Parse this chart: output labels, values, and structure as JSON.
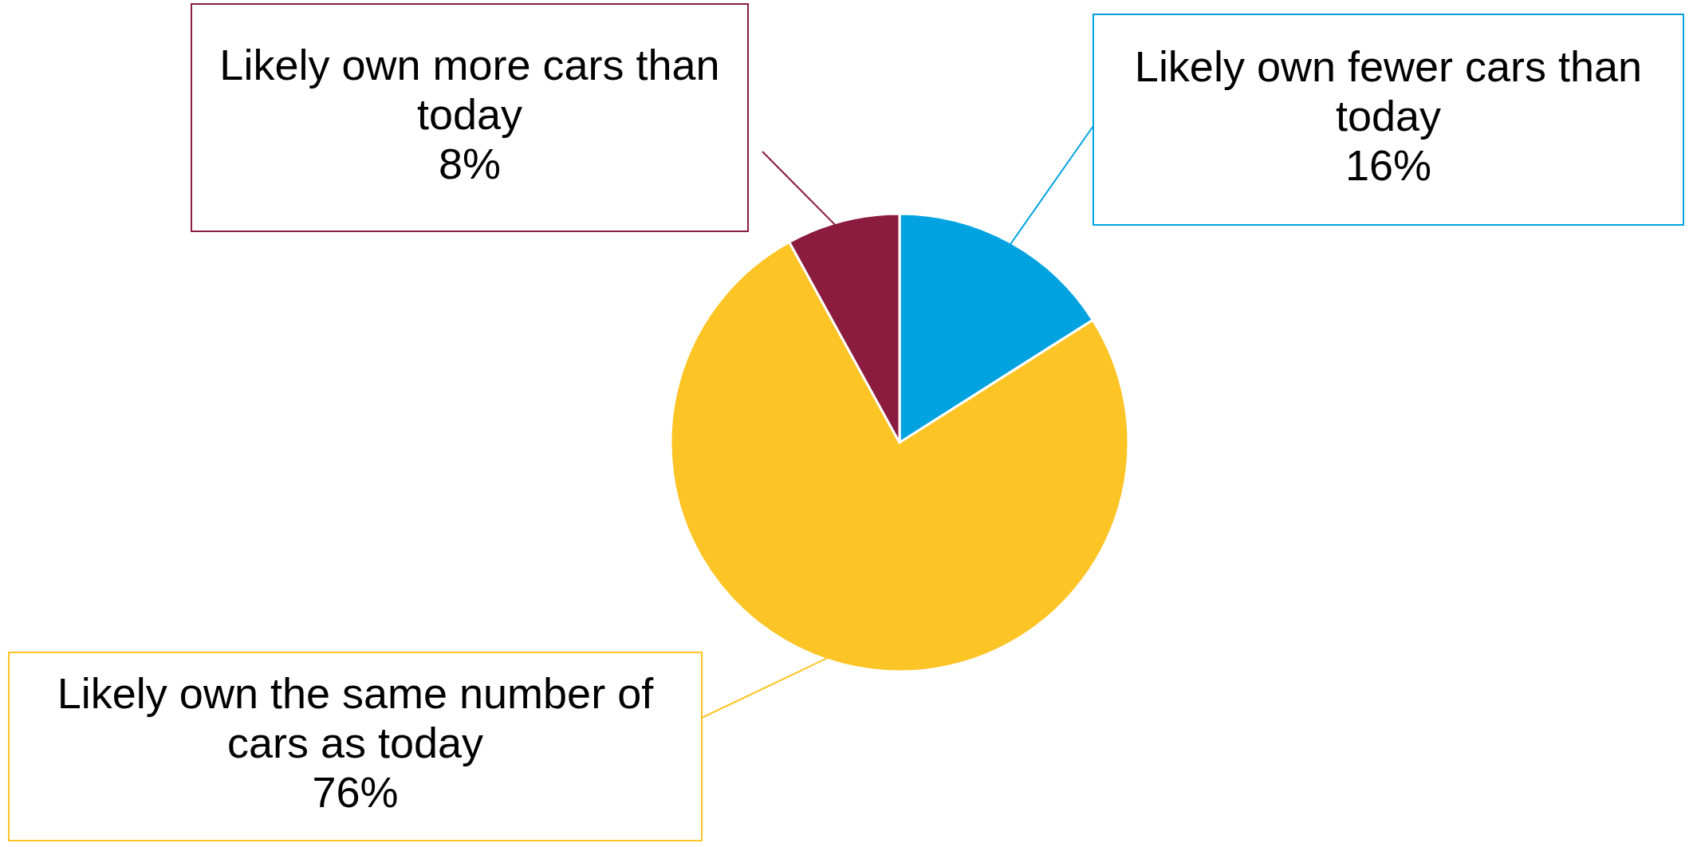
{
  "chart_data": {
    "type": "pie",
    "categories": [
      "Likely own fewer cars than today",
      "Likely own the same number of cars as today",
      "Likely own more cars than today"
    ],
    "values": [
      16,
      76,
      8
    ],
    "value_labels": [
      "16%",
      "76%",
      "8%"
    ],
    "colors": [
      "#00a3e0",
      "#fdc425",
      "#8b1c40"
    ]
  }
}
